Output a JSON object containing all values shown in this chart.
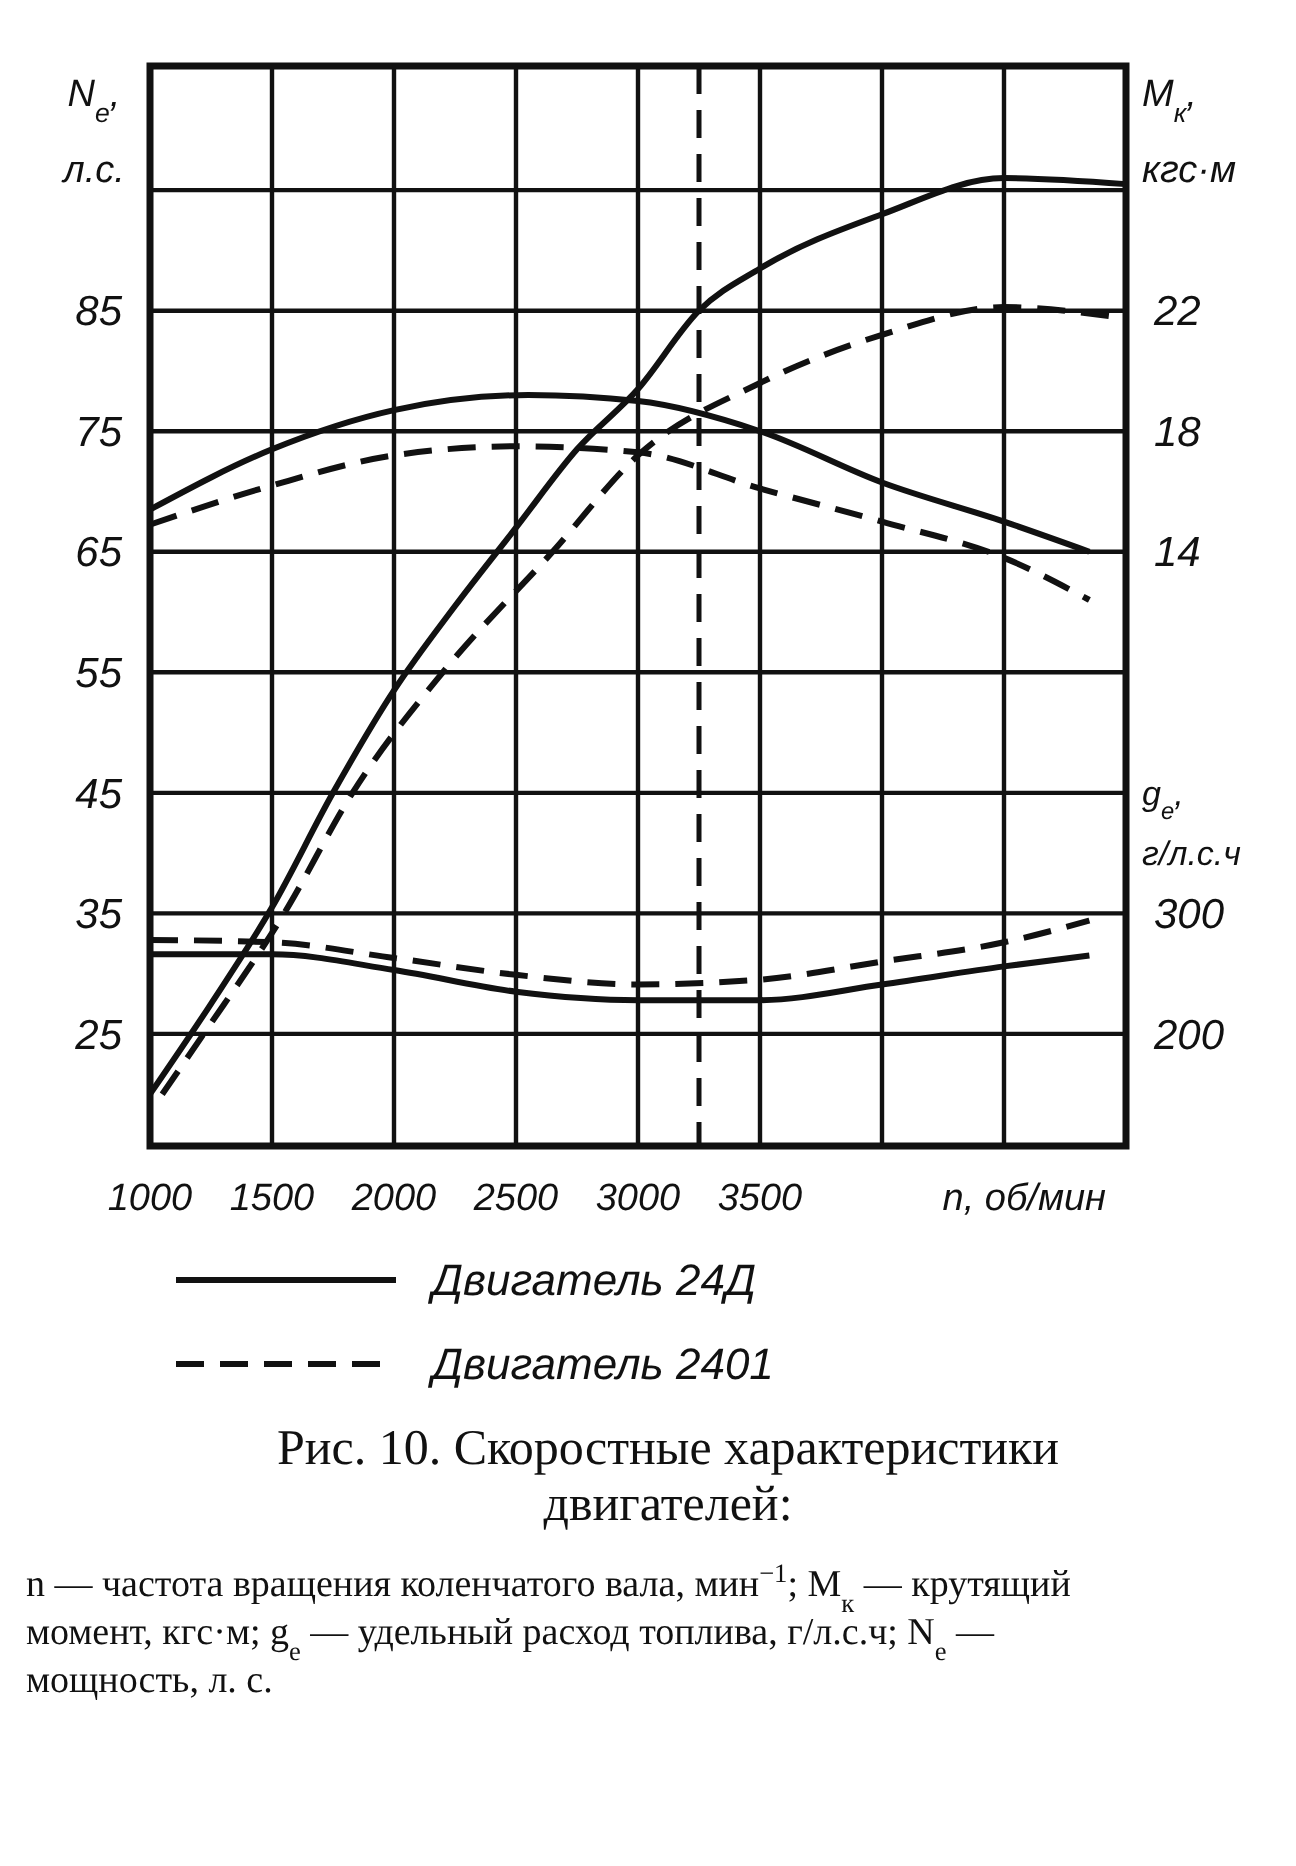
{
  "chart_data": {
    "type": "line",
    "title": "Рис. 10. Скоростные характеристики двигателей:",
    "xlabel": "n, об/мин",
    "ylabel": "N$_{e}$, л.с.",
    "y2label": "M$_{к}$, кгс·м",
    "y3label": "g$_{e}$, г/л.с.ч",
    "xlim": [
      1000,
      5000
    ],
    "xticks": [
      1000,
      1500,
      2000,
      2500,
      3000,
      3500,
      {
        "value": 4000,
        "label": null
      },
      {
        "value": 4500,
        "label": null
      }
    ],
    "ylim": [
      15.7,
      105.3
    ],
    "yticks": [
      25,
      35,
      45,
      55,
      65,
      75,
      85,
      {
        "value": 95,
        "label": null
      }
    ],
    "y2lim": [
      -5.72,
      30.12
    ],
    "y2ticks": [
      14,
      18,
      22
    ],
    "y3lim": [
      107,
      1003
    ],
    "y3ticks": [
      200,
      300
    ],
    "grid": true,
    "legend": "bottom",
    "series": [
      {
        "name": "Двигатель 24Д",
        "color": "#111111",
        "line_style": "solid",
        "axis": "y",
        "x": [
          1000,
          1250,
          1500,
          1750,
          2000,
          2250,
          2500,
          2750,
          3000,
          3250,
          3500,
          4000,
          4500,
          5000
        ],
        "values": [
          20,
          27.5,
          35.5,
          45,
          53.5,
          60.5,
          67,
          73.5,
          78.5,
          85,
          88.5,
          93,
          96,
          95.5
        ]
      },
      {
        "name": "Двигатель 2401",
        "color": "#111111",
        "line_style": "dashed",
        "axis": "y",
        "x": [
          1050,
          1220,
          1550,
          1830,
          2200,
          2650,
          3000,
          3500,
          4000,
          4500,
          4950
        ],
        "values": [
          20,
          25,
          35,
          45,
          55,
          65,
          73,
          79,
          83,
          85.3,
          84.5
        ]
      },
      {
        "color": "#111111",
        "line_style": "solid",
        "axis": "y2",
        "x": [
          1000,
          1500,
          2000,
          2550,
          3000,
          3500,
          4000,
          4500,
          4850
        ],
        "values": [
          15.4,
          17.4,
          18.7,
          19.2,
          19,
          18,
          16.3,
          15,
          14
        ]
      },
      {
        "color": "#111111",
        "line_style": "dashed",
        "axis": "y2",
        "x": [
          1000,
          1500,
          2000,
          2500,
          3000,
          3500,
          4000,
          4500,
          4850
        ],
        "values": [
          14.9,
          16.2,
          17.2,
          17.5,
          17.3,
          16.1,
          15,
          13.8,
          12.4
        ]
      },
      {
        "color": "#111111",
        "line_style": "solid",
        "axis": "y3",
        "x": [
          1000,
          1500,
          2000,
          2500,
          3000,
          3500,
          4000,
          4500,
          4850
        ],
        "values": [
          266,
          266,
          253,
          235,
          228,
          228,
          241,
          256,
          265
        ]
      },
      {
        "color": "#111111",
        "line_style": "dashed",
        "axis": "y3",
        "x": [
          1000,
          1500,
          2000,
          2500,
          3000,
          3500,
          4000,
          4500,
          4850
        ],
        "values": [
          278,
          276,
          263,
          249,
          241,
          245,
          260,
          276,
          294
        ]
      }
    ],
    "ref_lines": [
      {
        "axis": "x",
        "value": 3250,
        "line_style": "dashed",
        "color": "#111111"
      }
    ],
    "annotations": [
      "n — частота вращения коленчатого вала, мин$^{−1}$; M$_{к}$ — крутящий момент, кгс·м; g$_{e}$ — удельный расход топлива, г/л.с.ч; N$_{e}$ — мощность, л. с."
    ]
  }
}
